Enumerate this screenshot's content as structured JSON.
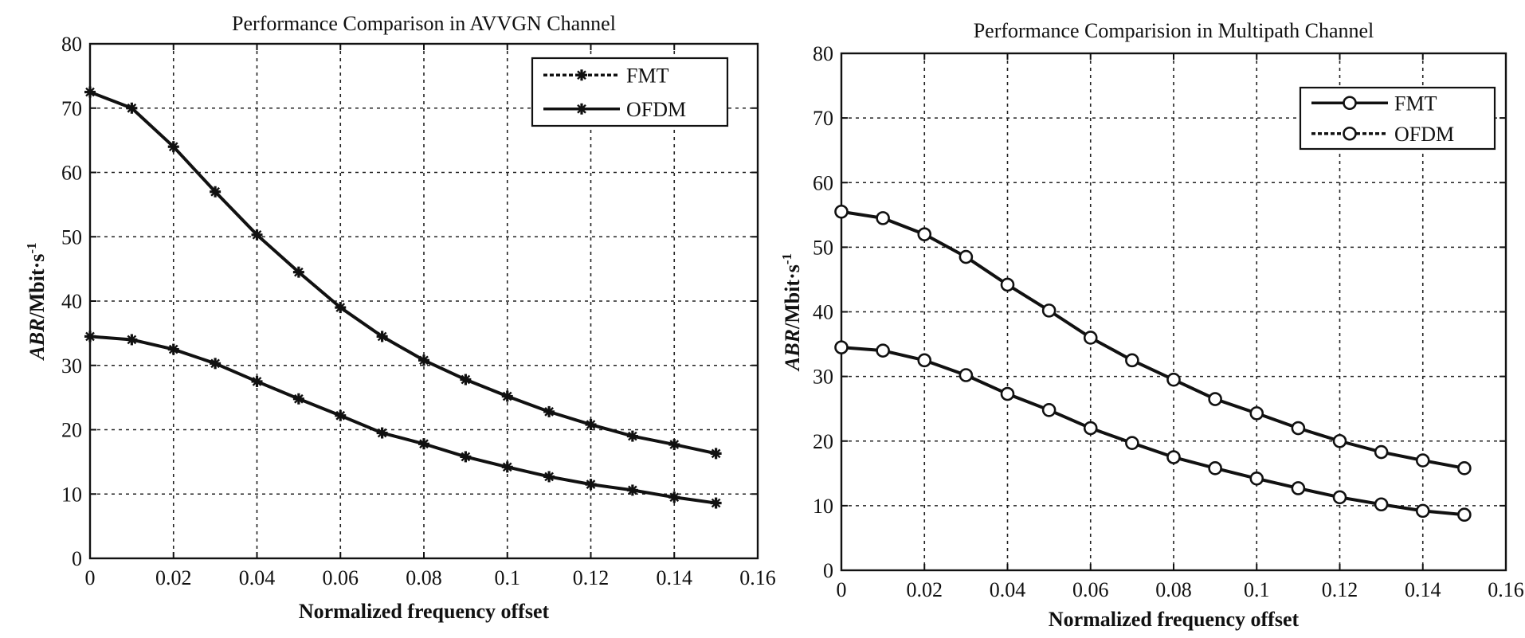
{
  "chart_data": [
    {
      "type": "line",
      "title": "Performance Comparison in AVVGN Channel",
      "xlabel": "Normalized frequency offset",
      "ylabel_main": "ABR",
      "ylabel_unit": "/Mbit·s",
      "ylabel_sup": "-1",
      "xlim": [
        0,
        0.16
      ],
      "ylim": [
        0,
        80
      ],
      "xticks": [
        "0",
        "0.02",
        "0.04",
        "0.06",
        "0.08",
        "0.1",
        "0.12",
        "0.14",
        "0.16"
      ],
      "yticks": [
        "0",
        "10",
        "20",
        "30",
        "40",
        "50",
        "60",
        "70",
        "80"
      ],
      "grid": true,
      "legend_position": "top-right",
      "marker": "star",
      "x": [
        0,
        0.01,
        0.02,
        0.03,
        0.04,
        0.05,
        0.06,
        0.07,
        0.08,
        0.09,
        0.1,
        0.11,
        0.12,
        0.13,
        0.14,
        0.15
      ],
      "series": [
        {
          "name": "FMT",
          "values": [
            72.5,
            70,
            64,
            57,
            50.3,
            44.5,
            39,
            34.5,
            30.8,
            27.8,
            25.2,
            22.8,
            20.8,
            19,
            17.7,
            16.3
          ]
        },
        {
          "name": "OFDM",
          "values": [
            34.5,
            34,
            32.5,
            30.3,
            27.5,
            24.8,
            22.2,
            19.5,
            17.8,
            15.8,
            14.2,
            12.7,
            11.5,
            10.6,
            9.5,
            8.6
          ]
        }
      ]
    },
    {
      "type": "line",
      "title": "Performance Comparision in Multipath Channel",
      "xlabel": "Normalized frequency offset",
      "ylabel_main": "ABR",
      "ylabel_unit": "/Mbit·s",
      "ylabel_sup": "-1",
      "xlim": [
        0,
        0.16
      ],
      "ylim": [
        0,
        80
      ],
      "xticks": [
        "0",
        "0.02",
        "0.04",
        "0.06",
        "0.08",
        "0.1",
        "0.12",
        "0.14",
        "0.16"
      ],
      "yticks": [
        "0",
        "10",
        "20",
        "30",
        "40",
        "50",
        "60",
        "70",
        "80"
      ],
      "grid": true,
      "legend_position": "top-right",
      "marker": "circle",
      "x": [
        0,
        0.01,
        0.02,
        0.03,
        0.04,
        0.05,
        0.06,
        0.07,
        0.08,
        0.09,
        0.1,
        0.11,
        0.12,
        0.13,
        0.14,
        0.15
      ],
      "series": [
        {
          "name": "FMT",
          "values": [
            55.5,
            54.5,
            52,
            48.5,
            44.2,
            40.2,
            36,
            32.5,
            29.5,
            26.5,
            24.3,
            22,
            20,
            18.3,
            17,
            15.8
          ]
        },
        {
          "name": "OFDM",
          "values": [
            34.5,
            34,
            32.5,
            30.2,
            27.3,
            24.8,
            22,
            19.7,
            17.5,
            15.8,
            14.2,
            12.7,
            11.3,
            10.2,
            9.2,
            8.6
          ]
        }
      ]
    }
  ]
}
